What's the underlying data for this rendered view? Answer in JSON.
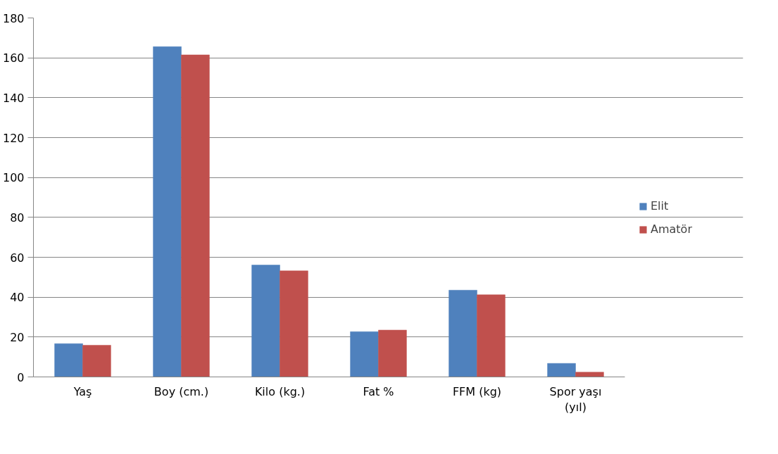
{
  "chart_data": {
    "type": "bar",
    "categories": [
      "Yaş",
      "Boy (cm.)",
      "Kilo (kg.)",
      "Fat %",
      "FFM (kg)",
      "Spor yaşı (yıl)"
    ],
    "series": [
      {
        "name": "Elit",
        "color": "#4f81bd",
        "values": [
          16.7,
          165.6,
          56.1,
          22.7,
          43.5,
          6.8
        ]
      },
      {
        "name": "Amatör",
        "color": "#c0504d",
        "values": [
          15.9,
          161.5,
          53.2,
          23.5,
          41.2,
          2.4
        ]
      }
    ],
    "ylim": [
      0,
      180
    ],
    "yticks": [
      0,
      20,
      40,
      60,
      80,
      100,
      120,
      140,
      160,
      180
    ],
    "grid": "y",
    "legend": "right"
  }
}
